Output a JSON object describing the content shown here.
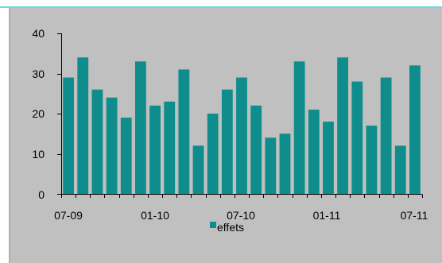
{
  "chart_data": {
    "type": "bar",
    "values": [
      29,
      34,
      26,
      24,
      19,
      33,
      22,
      23,
      31,
      12,
      20,
      26,
      29,
      22,
      14,
      15,
      33,
      21,
      18,
      34,
      28,
      17,
      29,
      12,
      32
    ],
    "xticks": [
      "07-09",
      "01-10",
      "07-10",
      "01-11",
      "07-11"
    ],
    "yticks": [
      "0",
      "10",
      "20",
      "30",
      "40"
    ],
    "ylim": [
      0,
      40
    ],
    "legend": "effets",
    "legend_position": "bottom",
    "grid": false
  },
  "colors": {
    "bar": "#0f8c8c",
    "panel": "#c0c0c0",
    "axis": "#000000"
  }
}
